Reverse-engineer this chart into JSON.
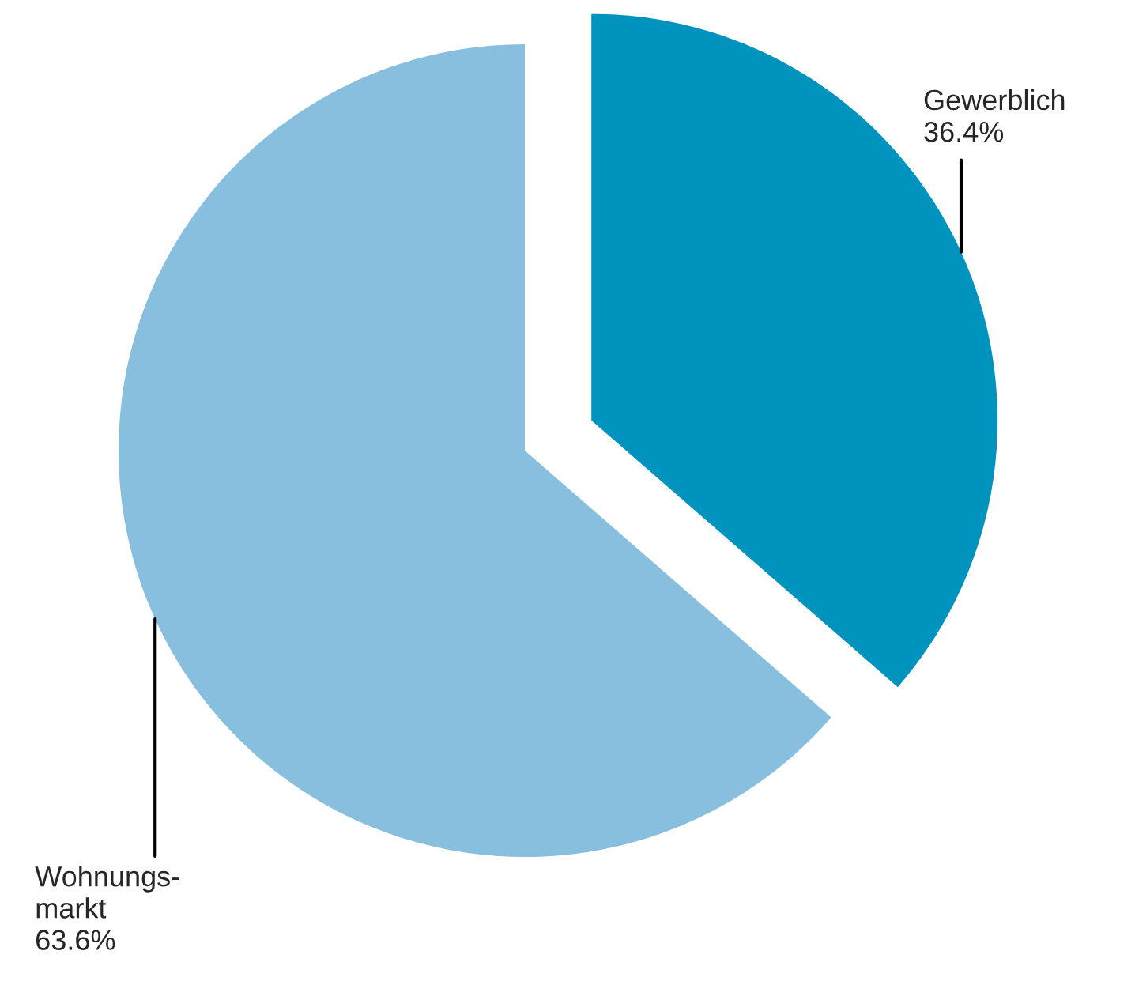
{
  "chart_data": {
    "type": "pie",
    "categories": [
      "Gewerblich",
      "Wohnungs-\nmarkt"
    ],
    "values": [
      36.4,
      63.6
    ],
    "value_labels": [
      "36.4%",
      "63.6%"
    ],
    "colors": [
      "#0093be",
      "#88bfdf"
    ],
    "legend": false
  }
}
